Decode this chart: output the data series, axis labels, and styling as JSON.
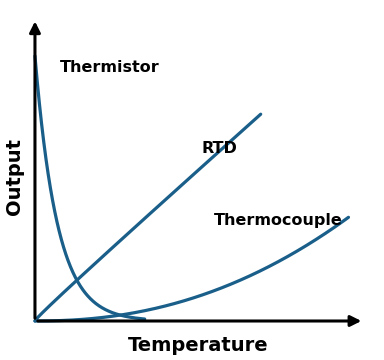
{
  "title": "",
  "xlabel": "Temperature",
  "ylabel": "Output",
  "curve_color": "#1a5f8a",
  "curve_linewidth": 2.3,
  "labels": {
    "thermistor": "Thermistor",
    "rtd": "RTD",
    "thermocouple": "Thermocouple"
  },
  "background_color": "#ffffff",
  "axis_color": "#000000",
  "label_fontsize": 11.5,
  "axis_label_fontsize": 14
}
